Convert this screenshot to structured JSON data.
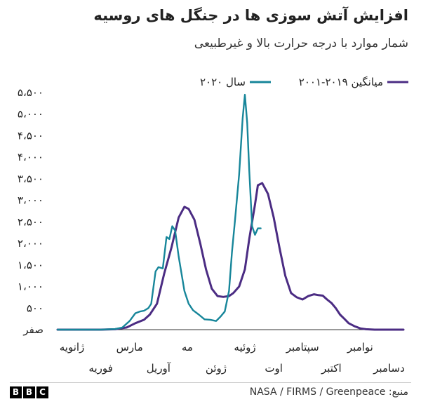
{
  "title": "افزایش آتش سوزی ها در جنگل های روسیه",
  "subtitle": "شمار موارد با درجه حرارت بالا و غیرطبیعی",
  "source": "منبع: NASA / FIRMS / Greenpeace",
  "logo_letters": [
    "B",
    "B",
    "C"
  ],
  "chart_data": {
    "type": "line",
    "title": "افزایش آتش سوزی ها در جنگل های روسیه",
    "ylabel": "",
    "xlabel": "",
    "ylim": [
      0,
      5500
    ],
    "xlim": [
      0,
      12
    ],
    "yticks": [
      {
        "v": 0,
        "label": "صفر"
      },
      {
        "v": 500,
        "label": "۵۰۰"
      },
      {
        "v": 1000,
        "label": "۱،۰۰۰"
      },
      {
        "v": 1500,
        "label": "۱،۵۰۰"
      },
      {
        "v": 2000,
        "label": "۲،۰۰۰"
      },
      {
        "v": 2500,
        "label": "۲،۵۰۰"
      },
      {
        "v": 3000,
        "label": "۳،۰۰۰"
      },
      {
        "v": 3500,
        "label": "۳،۵۰۰"
      },
      {
        "v": 4000,
        "label": "۴،۰۰۰"
      },
      {
        "v": 4500,
        "label": "۴،۵۰۰"
      },
      {
        "v": 5000,
        "label": "۵،۰۰۰"
      },
      {
        "v": 5500,
        "label": "۵،۵۰۰"
      }
    ],
    "months": [
      {
        "label": "ژانویه",
        "x": 0.5,
        "row": 1
      },
      {
        "label": "فوریه",
        "x": 1.5,
        "row": 2
      },
      {
        "label": "مارس",
        "x": 2.5,
        "row": 1
      },
      {
        "label": "آوریل",
        "x": 3.5,
        "row": 2
      },
      {
        "label": "مه",
        "x": 4.5,
        "row": 1
      },
      {
        "label": "ژوئن",
        "x": 5.5,
        "row": 2
      },
      {
        "label": "ژوئیه",
        "x": 6.5,
        "row": 1
      },
      {
        "label": "اوت",
        "x": 7.5,
        "row": 2
      },
      {
        "label": "سپتامبر",
        "x": 8.5,
        "row": 1
      },
      {
        "label": "اکتبر",
        "x": 9.5,
        "row": 2
      },
      {
        "label": "نوامبر",
        "x": 10.5,
        "row": 1
      },
      {
        "label": "دسامبر",
        "x": 11.5,
        "row": 2
      }
    ],
    "legend_placement": "top",
    "series": [
      {
        "name": "میانگین ۲۰۱۹-۲۰۰۱",
        "color": "#4b2c83",
        "points": [
          [
            0,
            0
          ],
          [
            1,
            0
          ],
          [
            1.5,
            0
          ],
          [
            2,
            10
          ],
          [
            2.4,
            50
          ],
          [
            2.7,
            150
          ],
          [
            3,
            230
          ],
          [
            3.2,
            350
          ],
          [
            3.45,
            600
          ],
          [
            3.7,
            1300
          ],
          [
            3.95,
            1900
          ],
          [
            4.2,
            2600
          ],
          [
            4.4,
            2850
          ],
          [
            4.55,
            2800
          ],
          [
            4.75,
            2550
          ],
          [
            4.95,
            2000
          ],
          [
            5.15,
            1400
          ],
          [
            5.35,
            950
          ],
          [
            5.55,
            780
          ],
          [
            5.75,
            760
          ],
          [
            5.95,
            780
          ],
          [
            6.1,
            850
          ],
          [
            6.3,
            1000
          ],
          [
            6.5,
            1400
          ],
          [
            6.65,
            2100
          ],
          [
            6.85,
            2900
          ],
          [
            6.95,
            3350
          ],
          [
            7.1,
            3400
          ],
          [
            7.3,
            3150
          ],
          [
            7.5,
            2600
          ],
          [
            7.7,
            1900
          ],
          [
            7.9,
            1250
          ],
          [
            8.1,
            850
          ],
          [
            8.3,
            750
          ],
          [
            8.5,
            700
          ],
          [
            8.7,
            780
          ],
          [
            8.9,
            820
          ],
          [
            9.05,
            800
          ],
          [
            9.2,
            790
          ],
          [
            9.35,
            700
          ],
          [
            9.5,
            620
          ],
          [
            9.65,
            500
          ],
          [
            9.8,
            350
          ],
          [
            9.95,
            250
          ],
          [
            10.1,
            150
          ],
          [
            10.3,
            80
          ],
          [
            10.5,
            30
          ],
          [
            10.7,
            10
          ],
          [
            11,
            0
          ],
          [
            12,
            0
          ]
        ]
      },
      {
        "name": "سال ۲۰۲۰",
        "color": "#17869a",
        "points": [
          [
            0,
            0
          ],
          [
            1,
            0
          ],
          [
            1.5,
            0
          ],
          [
            2,
            15
          ],
          [
            2.25,
            50
          ],
          [
            2.5,
            200
          ],
          [
            2.7,
            380
          ],
          [
            2.85,
            420
          ],
          [
            3,
            440
          ],
          [
            3.15,
            500
          ],
          [
            3.25,
            600
          ],
          [
            3.4,
            1350
          ],
          [
            3.5,
            1450
          ],
          [
            3.65,
            1420
          ],
          [
            3.78,
            2150
          ],
          [
            3.88,
            2100
          ],
          [
            3.98,
            2400
          ],
          [
            4.08,
            2300
          ],
          [
            4.2,
            1700
          ],
          [
            4.3,
            1300
          ],
          [
            4.4,
            900
          ],
          [
            4.55,
            600
          ],
          [
            4.7,
            450
          ],
          [
            4.9,
            350
          ],
          [
            5.1,
            240
          ],
          [
            5.3,
            230
          ],
          [
            5.5,
            200
          ],
          [
            5.65,
            300
          ],
          [
            5.8,
            420
          ],
          [
            5.95,
            900
          ],
          [
            6.05,
            1800
          ],
          [
            6.15,
            2500
          ],
          [
            6.3,
            3600
          ],
          [
            6.42,
            4900
          ],
          [
            6.5,
            5450
          ],
          [
            6.58,
            4800
          ],
          [
            6.65,
            3700
          ],
          [
            6.75,
            2400
          ],
          [
            6.85,
            2200
          ],
          [
            6.95,
            2350
          ],
          [
            7.05,
            2350
          ]
        ]
      }
    ]
  }
}
